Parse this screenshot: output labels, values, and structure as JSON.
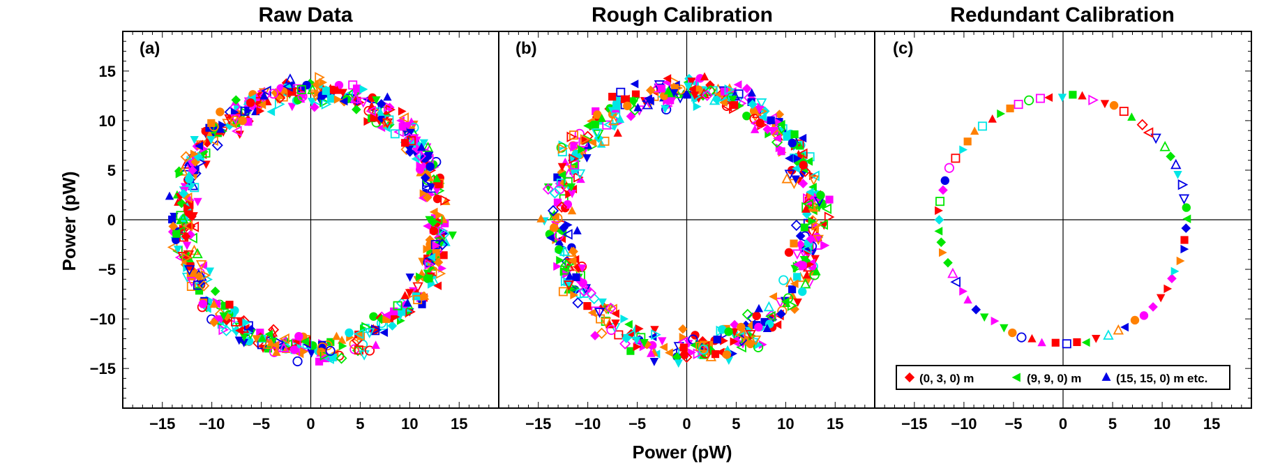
{
  "chart_data": {
    "type": "scatter",
    "xlabel": "Power (pW)",
    "ylabel": "Power (pW)",
    "xlim": [
      -19,
      19
    ],
    "ylim": [
      -19,
      19
    ],
    "xticks": [
      -15,
      -10,
      -5,
      0,
      5,
      10,
      15
    ],
    "yticks": [
      -15,
      -10,
      -5,
      0,
      5,
      10,
      15
    ],
    "xtick_labels": [
      "−15",
      "−10",
      "−5",
      "0",
      "5",
      "10",
      "15"
    ],
    "ytick_labels": [
      "−15",
      "−10",
      "−5",
      "0",
      "5",
      "10",
      "15"
    ],
    "series_colors": [
      "#ff0000",
      "#00e600",
      "#0000e6",
      "#ff00ff",
      "#00e6e6",
      "#ff8000"
    ],
    "marker_shapes": [
      "circle",
      "square",
      "diamond",
      "triangle-up",
      "triangle-down",
      "triangle-left",
      "triangle-right"
    ],
    "panels": [
      {
        "title": "Raw Data",
        "label": "(a)",
        "description": "ring of points, radius about 13 pW, spread about 1.2 pW",
        "radius": 13,
        "spread": 1.2,
        "count": 700,
        "seed": 11
      },
      {
        "title": "Rough Calibration",
        "label": "(b)",
        "description": "ring of clustered points, radius about 13 pW, spread about 1.4 pW",
        "radius": 13,
        "spread": 1.4,
        "count": 620,
        "seed": 29
      },
      {
        "title": "Redundant Calibration",
        "label": "(c)",
        "description": "single ring of calibrated points at radius about 12.5 pW",
        "radius": 12.5,
        "spread": 0.15,
        "count": 72,
        "seed": 5
      }
    ],
    "legend": [
      {
        "symbol": "diamond",
        "color": "#ff0000",
        "label": "(0, 3, 0) m"
      },
      {
        "symbol": "triangle-left",
        "color": "#00e600",
        "label": "(9, 9, 0) m"
      },
      {
        "symbol": "triangle-up",
        "color": "#0000e6",
        "label": "(15, 15, 0) m etc."
      }
    ]
  }
}
